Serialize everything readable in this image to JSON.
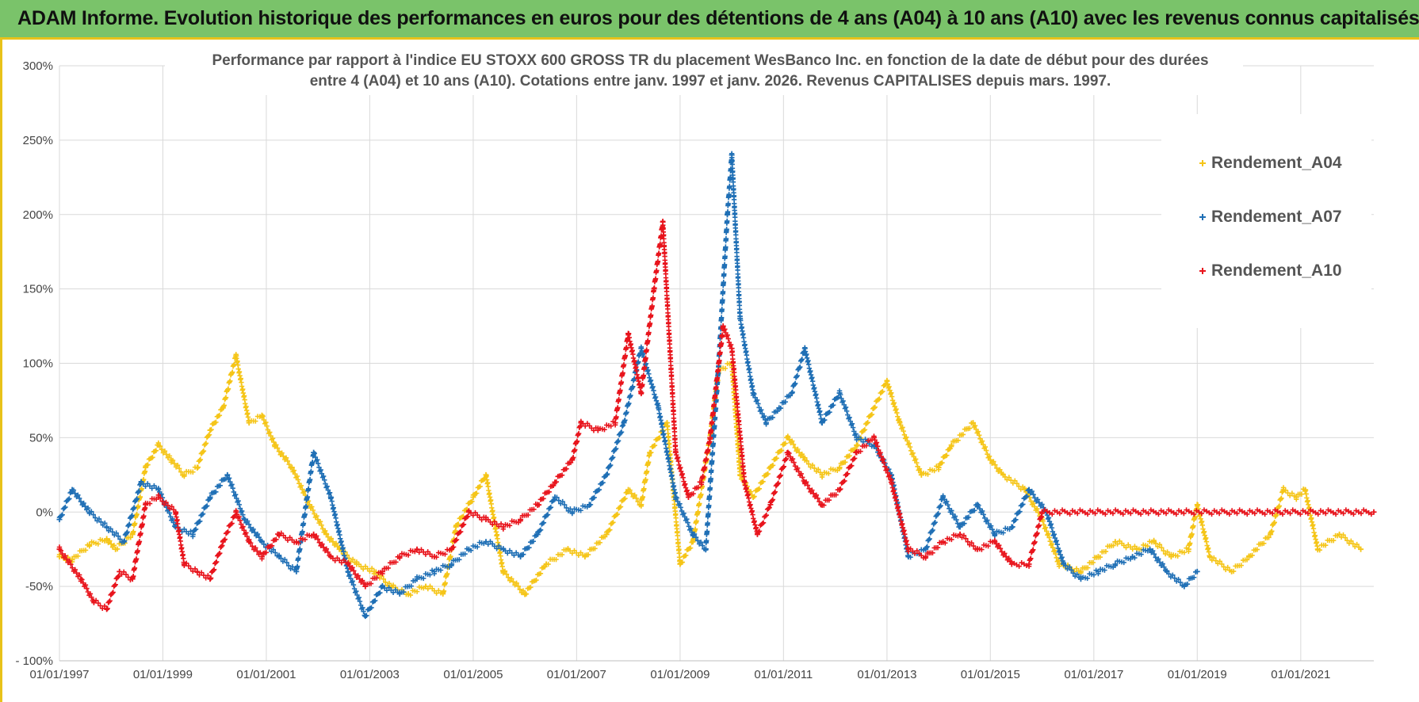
{
  "header": {
    "title": "ADAM Informe. Evolution historique des performances en euros pour des détentions de 4 ans (A04) à 10 ans (A10) avec les revenus connus capitalisés"
  },
  "colors": {
    "header_bg": "#7ac36a",
    "header_border": "#e8c21a",
    "a04": "#f5c518",
    "a07": "#1f6fb5",
    "a10": "#e8141c",
    "grid": "#d9d9d9"
  },
  "chart_data": {
    "type": "scatter",
    "title": "",
    "subtitle_lines": [
      "Performance par rapport à l'indice EU STOXX 600 GROSS TR  du placement WesBanco Inc. en fonction de la date de début pour des durées",
      "entre 4 (A04) et 10 ans (A10). Cotations entre janv. 1997 et janv. 2026. Revenus CAPITALISES depuis mars. 1997."
    ],
    "xlabel": "",
    "ylabel": "",
    "x_range": [
      "1997-01-01",
      "2022-06-01"
    ],
    "ylim": [
      -100,
      300
    ],
    "y_ticks": [
      -100,
      -50,
      0,
      50,
      100,
      150,
      200,
      250,
      300
    ],
    "y_tick_labels": [
      "- 100%",
      "-50%",
      "0%",
      "50%",
      "100%",
      "150%",
      "200%",
      "250%",
      "300%"
    ],
    "x_ticks": [
      "1997-01-01",
      "1999-01-01",
      "2001-01-01",
      "2003-01-01",
      "2005-01-01",
      "2007-01-01",
      "2009-01-01",
      "2011-01-01",
      "2013-01-01",
      "2015-01-01",
      "2017-01-01",
      "2019-01-01",
      "2021-01-01"
    ],
    "x_tick_labels": [
      "01/01/1997",
      "01/01/1999",
      "01/01/2001",
      "01/01/2003",
      "01/01/2005",
      "01/01/2007",
      "01/01/2009",
      "01/01/2011",
      "01/01/2013",
      "01/01/2015",
      "01/01/2017",
      "01/01/2019",
      "01/01/2021"
    ],
    "grid": true,
    "legend_position": "top-right",
    "series": [
      {
        "name": "Rendement_A04",
        "color": "#f5c518",
        "points": [
          [
            "1997-01-01",
            -30
          ],
          [
            "1997-04-01",
            -32
          ],
          [
            "1997-08-01",
            -22
          ],
          [
            "1997-12-01",
            -18
          ],
          [
            "1998-02-01",
            -25
          ],
          [
            "1998-06-01",
            -15
          ],
          [
            "1998-09-01",
            30
          ],
          [
            "1998-12-01",
            45
          ],
          [
            "1999-03-01",
            35
          ],
          [
            "1999-06-01",
            25
          ],
          [
            "1999-09-01",
            30
          ],
          [
            "1999-12-01",
            55
          ],
          [
            "2000-03-01",
            70
          ],
          [
            "2000-06-01",
            105
          ],
          [
            "2000-09-01",
            60
          ],
          [
            "2000-12-01",
            65
          ],
          [
            "2001-03-01",
            45
          ],
          [
            "2001-07-01",
            30
          ],
          [
            "2001-11-01",
            5
          ],
          [
            "2002-03-01",
            -15
          ],
          [
            "2002-06-01",
            -25
          ],
          [
            "2002-10-01",
            -35
          ],
          [
            "2003-02-01",
            -40
          ],
          [
            "2003-06-01",
            -50
          ],
          [
            "2003-10-01",
            -55
          ],
          [
            "2004-02-01",
            -50
          ],
          [
            "2004-06-01",
            -55
          ],
          [
            "2004-09-01",
            -10
          ],
          [
            "2005-01-01",
            10
          ],
          [
            "2005-04-01",
            25
          ],
          [
            "2005-08-01",
            -40
          ],
          [
            "2006-01-01",
            -55
          ],
          [
            "2006-06-01",
            -35
          ],
          [
            "2006-11-01",
            -25
          ],
          [
            "2007-03-01",
            -30
          ],
          [
            "2007-08-01",
            -15
          ],
          [
            "2008-01-01",
            15
          ],
          [
            "2008-04-01",
            5
          ],
          [
            "2008-06-01",
            40
          ],
          [
            "2008-10-01",
            60
          ],
          [
            "2009-01-01",
            -35
          ],
          [
            "2009-04-01",
            -20
          ],
          [
            "2009-08-01",
            50
          ],
          [
            "2009-10-01",
            95
          ],
          [
            "2010-01-01",
            100
          ],
          [
            "2010-03-01",
            25
          ],
          [
            "2010-06-01",
            10
          ],
          [
            "2010-10-01",
            30
          ],
          [
            "2011-02-01",
            50
          ],
          [
            "2011-06-01",
            35
          ],
          [
            "2011-10-01",
            25
          ],
          [
            "2012-02-01",
            30
          ],
          [
            "2012-06-01",
            45
          ],
          [
            "2012-10-01",
            70
          ],
          [
            "2013-01-01",
            88
          ],
          [
            "2013-04-01",
            60
          ],
          [
            "2013-09-01",
            25
          ],
          [
            "2014-01-01",
            30
          ],
          [
            "2014-04-01",
            45
          ],
          [
            "2014-09-01",
            60
          ],
          [
            "2015-01-01",
            35
          ],
          [
            "2015-04-01",
            25
          ],
          [
            "2015-09-01",
            15
          ],
          [
            "2016-01-01",
            -5
          ],
          [
            "2016-05-01",
            -35
          ],
          [
            "2016-10-01",
            -40
          ],
          [
            "2017-02-01",
            -30
          ],
          [
            "2017-06-01",
            -20
          ],
          [
            "2017-11-01",
            -25
          ],
          [
            "2018-03-01",
            -20
          ],
          [
            "2018-07-01",
            -30
          ],
          [
            "2018-11-01",
            -25
          ],
          [
            "2019-01-01",
            5
          ],
          [
            "2019-04-01",
            -30
          ],
          [
            "2019-09-01",
            -40
          ],
          [
            "2020-01-01",
            -30
          ],
          [
            "2020-06-01",
            -15
          ],
          [
            "2020-09-01",
            15
          ],
          [
            "2020-12-01",
            10
          ],
          [
            "2021-02-01",
            15
          ],
          [
            "2021-05-01",
            -25
          ],
          [
            "2021-10-01",
            -15
          ],
          [
            "2022-03-01",
            -25
          ]
        ]
      },
      {
        "name": "Rendement_A07",
        "color": "#1f6fb5",
        "points": [
          [
            "1997-01-01",
            -5
          ],
          [
            "1997-04-01",
            15
          ],
          [
            "1997-08-01",
            0
          ],
          [
            "1997-12-01",
            -10
          ],
          [
            "1998-04-01",
            -20
          ],
          [
            "1998-08-01",
            20
          ],
          [
            "1998-12-01",
            15
          ],
          [
            "1999-04-01",
            -10
          ],
          [
            "1999-08-01",
            -15
          ],
          [
            "1999-12-01",
            10
          ],
          [
            "2000-04-01",
            25
          ],
          [
            "2000-08-01",
            -5
          ],
          [
            "2000-12-01",
            -20
          ],
          [
            "2001-04-01",
            -30
          ],
          [
            "2001-08-01",
            -40
          ],
          [
            "2001-12-01",
            40
          ],
          [
            "2002-04-01",
            10
          ],
          [
            "2002-08-01",
            -40
          ],
          [
            "2002-12-01",
            -70
          ],
          [
            "2003-04-01",
            -50
          ],
          [
            "2003-08-01",
            -55
          ],
          [
            "2003-12-01",
            -45
          ],
          [
            "2004-04-01",
            -40
          ],
          [
            "2004-08-01",
            -35
          ],
          [
            "2004-12-01",
            -25
          ],
          [
            "2005-04-01",
            -20
          ],
          [
            "2005-08-01",
            -25
          ],
          [
            "2005-12-01",
            -30
          ],
          [
            "2006-04-01",
            -15
          ],
          [
            "2006-08-01",
            10
          ],
          [
            "2006-12-01",
            0
          ],
          [
            "2007-04-01",
            5
          ],
          [
            "2007-08-01",
            25
          ],
          [
            "2007-12-01",
            60
          ],
          [
            "2008-04-01",
            110
          ],
          [
            "2008-08-01",
            70
          ],
          [
            "2008-12-01",
            10
          ],
          [
            "2009-04-01",
            -15
          ],
          [
            "2009-07-01",
            -25
          ],
          [
            "2009-10-01",
            100
          ],
          [
            "2009-12-01",
            200
          ],
          [
            "2010-01-01",
            240
          ],
          [
            "2010-03-01",
            130
          ],
          [
            "2010-06-01",
            80
          ],
          [
            "2010-09-01",
            60
          ],
          [
            "2010-12-01",
            70
          ],
          [
            "2011-03-01",
            80
          ],
          [
            "2011-06-01",
            110
          ],
          [
            "2011-10-01",
            60
          ],
          [
            "2012-02-01",
            80
          ],
          [
            "2012-06-01",
            50
          ],
          [
            "2012-10-01",
            45
          ],
          [
            "2013-02-01",
            25
          ],
          [
            "2013-06-01",
            -30
          ],
          [
            "2013-10-01",
            -25
          ],
          [
            "2014-02-01",
            10
          ],
          [
            "2014-06-01",
            -10
          ],
          [
            "2014-10-01",
            5
          ],
          [
            "2015-02-01",
            -15
          ],
          [
            "2015-06-01",
            -10
          ],
          [
            "2015-10-01",
            15
          ],
          [
            "2016-02-01",
            0
          ],
          [
            "2016-06-01",
            -35
          ],
          [
            "2016-10-01",
            -45
          ],
          [
            "2017-02-01",
            -40
          ],
          [
            "2017-06-01",
            -35
          ],
          [
            "2017-10-01",
            -30
          ],
          [
            "2018-02-01",
            -25
          ],
          [
            "2018-06-01",
            -40
          ],
          [
            "2018-10-01",
            -50
          ],
          [
            "2019-01-01",
            -40
          ]
        ]
      },
      {
        "name": "Rendement_A10",
        "color": "#e8141c",
        "points": [
          [
            "1997-01-01",
            -25
          ],
          [
            "1997-06-01",
            -45
          ],
          [
            "1997-09-01",
            -60
          ],
          [
            "1997-12-01",
            -65
          ],
          [
            "1998-03-01",
            -40
          ],
          [
            "1998-06-01",
            -45
          ],
          [
            "1998-09-01",
            5
          ],
          [
            "1998-12-01",
            10
          ],
          [
            "1999-04-01",
            0
          ],
          [
            "1999-06-01",
            -35
          ],
          [
            "1999-09-01",
            -40
          ],
          [
            "1999-12-01",
            -45
          ],
          [
            "2000-03-01",
            -20
          ],
          [
            "2000-06-01",
            0
          ],
          [
            "2000-09-01",
            -20
          ],
          [
            "2000-12-01",
            -30
          ],
          [
            "2001-04-01",
            -15
          ],
          [
            "2001-08-01",
            -20
          ],
          [
            "2001-12-01",
            -15
          ],
          [
            "2002-04-01",
            -30
          ],
          [
            "2002-08-01",
            -35
          ],
          [
            "2002-12-01",
            -50
          ],
          [
            "2003-04-01",
            -40
          ],
          [
            "2003-08-01",
            -30
          ],
          [
            "2003-12-01",
            -25
          ],
          [
            "2004-04-01",
            -30
          ],
          [
            "2004-08-01",
            -25
          ],
          [
            "2004-12-01",
            0
          ],
          [
            "2005-04-01",
            -5
          ],
          [
            "2005-08-01",
            -10
          ],
          [
            "2005-12-01",
            -5
          ],
          [
            "2006-04-01",
            5
          ],
          [
            "2006-08-01",
            20
          ],
          [
            "2006-12-01",
            35
          ],
          [
            "2007-02-01",
            60
          ],
          [
            "2007-06-01",
            55
          ],
          [
            "2007-10-01",
            60
          ],
          [
            "2008-01-01",
            120
          ],
          [
            "2008-04-01",
            80
          ],
          [
            "2008-07-01",
            150
          ],
          [
            "2008-09-01",
            195
          ],
          [
            "2008-12-01",
            40
          ],
          [
            "2009-03-01",
            10
          ],
          [
            "2009-06-01",
            20
          ],
          [
            "2009-08-01",
            50
          ],
          [
            "2009-11-01",
            125
          ],
          [
            "2010-01-01",
            110
          ],
          [
            "2010-04-01",
            20
          ],
          [
            "2010-07-01",
            -15
          ],
          [
            "2010-10-01",
            5
          ],
          [
            "2011-02-01",
            40
          ],
          [
            "2011-06-01",
            20
          ],
          [
            "2011-10-01",
            5
          ],
          [
            "2012-02-01",
            15
          ],
          [
            "2012-06-01",
            40
          ],
          [
            "2012-10-01",
            50
          ],
          [
            "2013-02-01",
            20
          ],
          [
            "2013-06-01",
            -25
          ],
          [
            "2013-10-01",
            -30
          ],
          [
            "2014-02-01",
            -20
          ],
          [
            "2014-06-01",
            -15
          ],
          [
            "2014-10-01",
            -25
          ],
          [
            "2015-02-01",
            -20
          ],
          [
            "2015-06-01",
            -35
          ],
          [
            "2015-10-01",
            -35
          ],
          [
            "2016-01-01",
            0
          ],
          [
            "2022-06-01",
            0
          ]
        ]
      }
    ]
  }
}
